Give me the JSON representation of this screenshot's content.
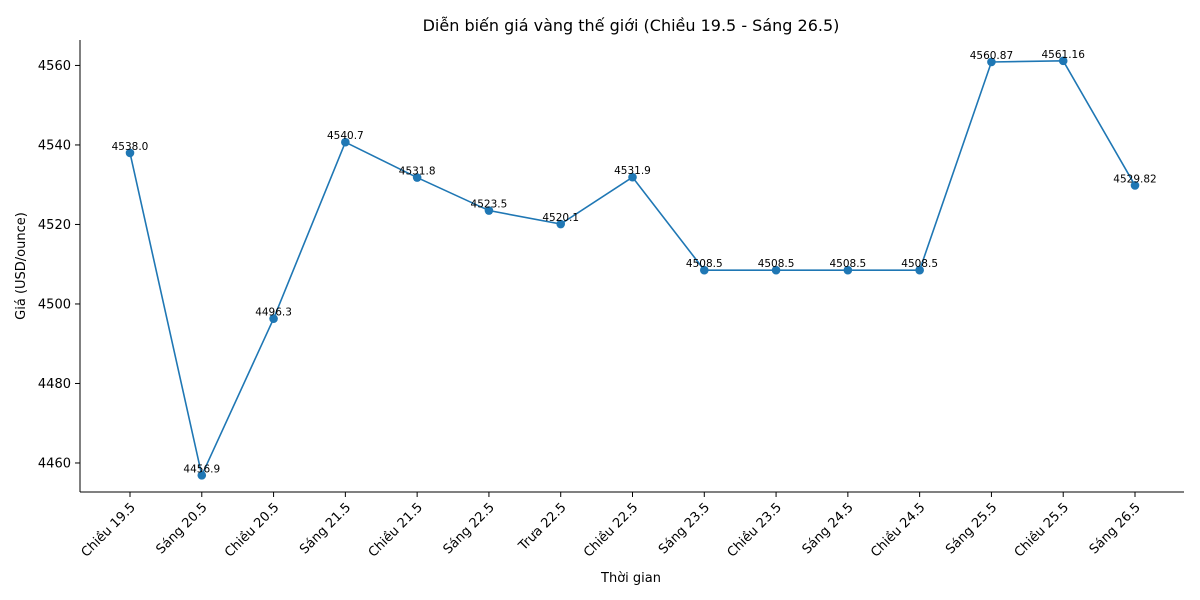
{
  "chart_data": {
    "type": "line",
    "title": "Diễn biến giá vàng thế giới (Chiều 19.5 - Sáng 26.5)",
    "xlabel": "Thời gian",
    "ylabel": "Giá (USD/ounce)",
    "categories": [
      "Chiều 19.5",
      "Sáng 20.5",
      "Chiều 20.5",
      "Sáng 21.5",
      "Chiều 21.5",
      "Sáng 22.5",
      "Trưa 22.5",
      "Chiều 22.5",
      "Sáng 23.5",
      "Chiều 23.5",
      "Sáng 24.5",
      "Chiều 24.5",
      "Sáng 25.5",
      "Chiều 25.5",
      "Sáng 26.5"
    ],
    "values": [
      4538.0,
      4456.9,
      4496.3,
      4540.7,
      4531.8,
      4523.5,
      4520.1,
      4531.9,
      4508.5,
      4508.5,
      4508.5,
      4508.5,
      4560.87,
      4561.16,
      4529.82
    ],
    "value_labels": [
      "4538.0",
      "4456.9",
      "4496.3",
      "4540.7",
      "4531.8",
      "4523.5",
      "4520.1",
      "4531.9",
      "4508.5",
      "4508.5",
      "4508.5",
      "4508.5",
      "4560.87",
      "4561.16",
      "4529.82"
    ],
    "yticks": [
      4460,
      4480,
      4500,
      4520,
      4540,
      4560
    ],
    "ylim": [
      4452.7,
      4566.4
    ],
    "grid": false,
    "line_color": "#1f77b4"
  }
}
